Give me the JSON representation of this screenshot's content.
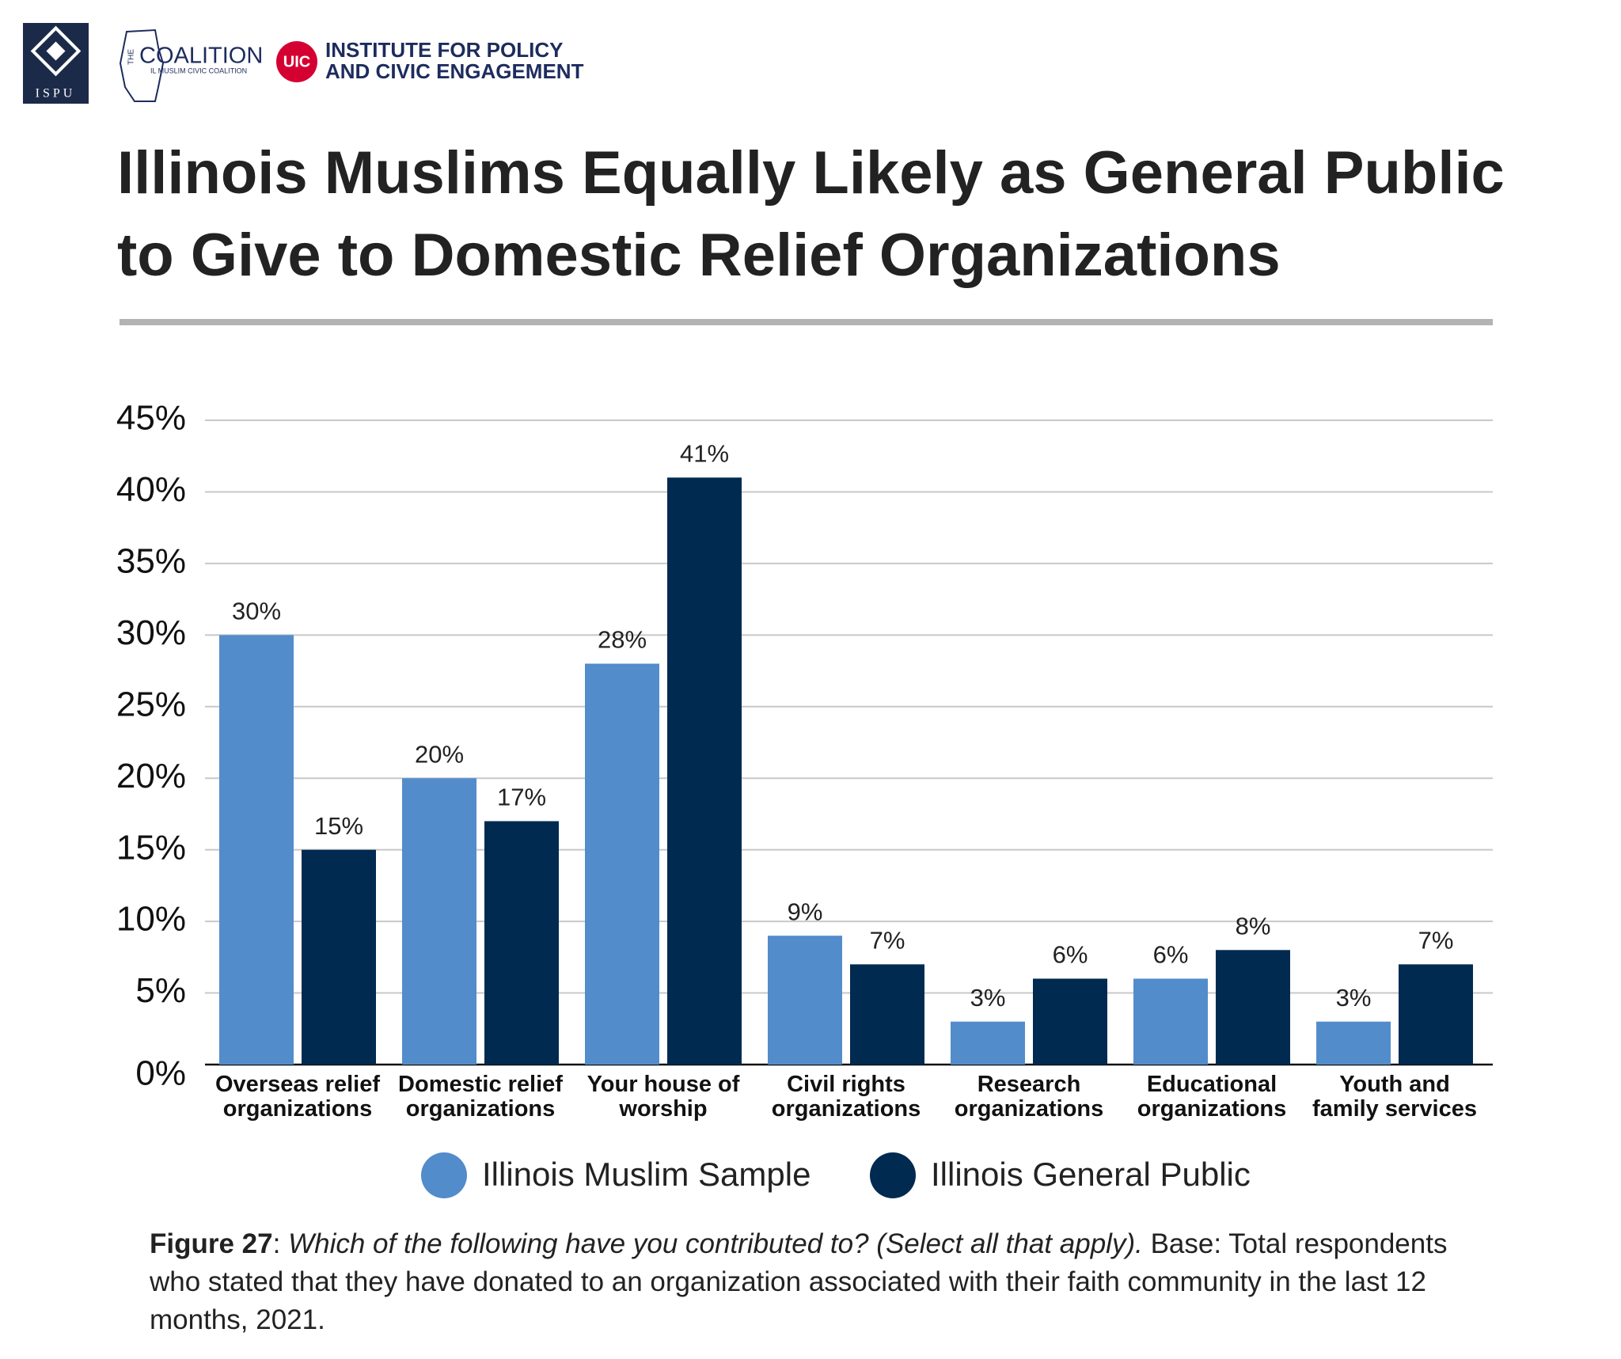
{
  "header": {
    "ispu": "ISPU",
    "coalition_the": "THE",
    "coalition": "COALITION",
    "coalition_sub": "IL MUSLIM CIVIC COALITION",
    "uic": "UIC",
    "institute_line1": "INSTITUTE FOR POLICY",
    "institute_line2": "AND CIVIC ENGAGEMENT"
  },
  "chart_data": {
    "type": "bar",
    "title": [
      "Illinois Muslims Equally Likely as General Public",
      "to Give to Domestic Relief Organizations"
    ],
    "categories": [
      "Overseas relief organizations",
      "Domestic relief organizations",
      "Your house of worship",
      "Civil rights organizations",
      "Research organizations",
      "Educational organizations",
      "Youth and family services"
    ],
    "series": [
      {
        "name": "Illinois Muslim Sample",
        "color": "#538ccb",
        "values": [
          30,
          20,
          28,
          9,
          3,
          6,
          3
        ],
        "value_labels": [
          "30%",
          "20%",
          "28%",
          "9%",
          "3%",
          "6%",
          "3%"
        ]
      },
      {
        "name": "Illinois General Public",
        "color": "#002a50",
        "values": [
          15,
          17,
          41,
          7,
          6,
          8,
          7
        ],
        "value_labels": [
          "15%",
          "17%",
          "41%",
          "7%",
          "6%",
          "8%",
          "7%"
        ]
      }
    ],
    "ylim": [
      0,
      45
    ],
    "yticks": [
      {
        "value": 0,
        "label": "0%"
      },
      {
        "value": 5,
        "label": "5%"
      },
      {
        "value": 10,
        "label": "10%"
      },
      {
        "value": 15,
        "label": "15%"
      },
      {
        "value": 20,
        "label": "20%"
      },
      {
        "value": 25,
        "label": "25%"
      },
      {
        "value": 30,
        "label": "30%"
      },
      {
        "value": 35,
        "label": "35%"
      },
      {
        "value": 40,
        "label": "40%"
      },
      {
        "value": 45,
        "label": "45%"
      }
    ],
    "grid": true
  },
  "caption": {
    "label": "Figure 27",
    "question": "Which of the following have you contributed to? (Select all that apply).",
    "text": "Base: Total respondents who stated that they have donated to an organization associated with their faith community in the last 12 months, 2021."
  }
}
